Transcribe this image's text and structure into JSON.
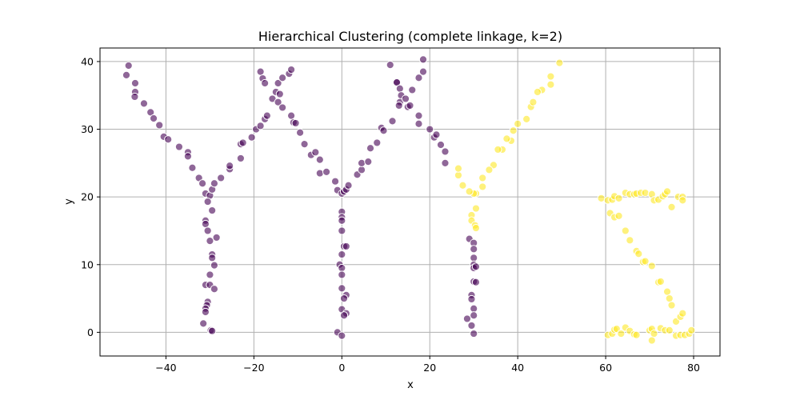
{
  "chart_data": {
    "type": "scatter",
    "title": "Hierarchical Clustering (complete linkage, k=2)",
    "xlabel": "x",
    "ylabel": "y",
    "xlim": [
      -55,
      86
    ],
    "ylim": [
      -3.5,
      42
    ],
    "xticks": [
      -40,
      -20,
      0,
      20,
      40,
      60,
      80
    ],
    "yticks": [
      0,
      10,
      20,
      30,
      40
    ],
    "grid": true,
    "point_alpha": 0.6,
    "colors": {
      "cluster_0": "#440154",
      "cluster_1": "#fde725"
    },
    "series": [
      {
        "cluster": 0,
        "points": [
          [
            -49,
            38
          ],
          [
            -48.5,
            39.4
          ],
          [
            -47,
            36.8
          ],
          [
            -47,
            35.5
          ],
          [
            -47.1,
            34.8
          ],
          [
            -45,
            33.8
          ],
          [
            -43.5,
            32.5
          ],
          [
            -42.8,
            31.6
          ],
          [
            -41.5,
            30.6
          ],
          [
            -40.5,
            28.9
          ],
          [
            -39.5,
            28.5
          ],
          [
            -37,
            27.4
          ],
          [
            -35,
            26.6
          ],
          [
            -35,
            26
          ],
          [
            -34,
            24.3
          ],
          [
            -32.5,
            22.8
          ],
          [
            -31.7,
            22
          ],
          [
            -31,
            20.5
          ],
          [
            -30,
            20.2
          ],
          [
            -30.5,
            19.3
          ],
          [
            -29.5,
            18
          ],
          [
            -29.5,
            21.1
          ],
          [
            -29,
            22
          ],
          [
            -27.5,
            22.8
          ],
          [
            -25.5,
            24.1
          ],
          [
            -25.5,
            24.6
          ],
          [
            -23,
            27.8
          ],
          [
            -22.5,
            28
          ],
          [
            -23,
            25.7
          ],
          [
            -20.5,
            28.8
          ],
          [
            -19.5,
            30
          ],
          [
            -18.5,
            30.5
          ],
          [
            -18.5,
            38.5
          ],
          [
            -18,
            37.5
          ],
          [
            -17.5,
            36.8
          ],
          [
            -17.5,
            31.5
          ],
          [
            -17,
            32
          ],
          [
            -15.8,
            34.5
          ],
          [
            -15,
            35.5
          ],
          [
            -14.5,
            36.8
          ],
          [
            -14.5,
            34
          ],
          [
            -14.1,
            35.2
          ],
          [
            -13.5,
            33.2
          ],
          [
            -13.5,
            37.6
          ],
          [
            -12,
            38.2
          ],
          [
            -11.5,
            38.8
          ],
          [
            -11.5,
            32
          ],
          [
            -11,
            31
          ],
          [
            -10.5,
            30.9
          ],
          [
            -9.5,
            29.5
          ],
          [
            -8.5,
            27.8
          ],
          [
            -7,
            26.2
          ],
          [
            -6,
            26.6
          ],
          [
            -5,
            25.5
          ],
          [
            -5,
            23.5
          ],
          [
            -3.5,
            23.7
          ],
          [
            -1.5,
            22.3
          ],
          [
            -1,
            21
          ],
          [
            0,
            20.5
          ],
          [
            0.5,
            20.8
          ],
          [
            1,
            21.1
          ],
          [
            1.5,
            21.7
          ],
          [
            3.5,
            23.3
          ],
          [
            4.5,
            24
          ],
          [
            4.5,
            25
          ],
          [
            6,
            25.2
          ],
          [
            6.5,
            27.2
          ],
          [
            8,
            28
          ],
          [
            9,
            30.2
          ],
          [
            9.5,
            29.8
          ],
          [
            11,
            39.5
          ],
          [
            11.5,
            31.2
          ],
          [
            12.5,
            37
          ],
          [
            12.5,
            36.9
          ],
          [
            13.2,
            36
          ],
          [
            13.5,
            35
          ],
          [
            13.2,
            34
          ],
          [
            13,
            33.5
          ],
          [
            14.5,
            34.5
          ],
          [
            15,
            33.3
          ],
          [
            15.5,
            33.5
          ],
          [
            16,
            35.8
          ],
          [
            17.5,
            37.6
          ],
          [
            18.5,
            38.5
          ],
          [
            18.5,
            40.3
          ],
          [
            17.5,
            32
          ],
          [
            17.5,
            30.8
          ],
          [
            20,
            30
          ],
          [
            21,
            28.8
          ],
          [
            21.5,
            29.2
          ],
          [
            22.5,
            27.7
          ],
          [
            23.5,
            26.7
          ],
          [
            23.5,
            25
          ],
          [
            -31,
            16.5
          ],
          [
            -31,
            16
          ],
          [
            -30.5,
            15
          ],
          [
            -30,
            13.5
          ],
          [
            -29.5,
            11.5
          ],
          [
            -29.5,
            11
          ],
          [
            -29,
            9.9
          ],
          [
            -30,
            8.5
          ],
          [
            -31,
            7
          ],
          [
            -30,
            7
          ],
          [
            -29,
            6.4
          ],
          [
            -30.5,
            4.5
          ],
          [
            -30.7,
            4
          ],
          [
            -31,
            3.5
          ],
          [
            -31,
            3
          ],
          [
            -31.5,
            1.3
          ],
          [
            -29.8,
            0.3
          ],
          [
            -29.5,
            0.2
          ],
          [
            -28.5,
            14
          ],
          [
            0,
            17.8
          ],
          [
            0,
            17
          ],
          [
            0,
            16.5
          ],
          [
            0,
            15
          ],
          [
            0.5,
            12.7
          ],
          [
            1,
            12.7
          ],
          [
            0,
            11.5
          ],
          [
            -0.5,
            10
          ],
          [
            0,
            9.5
          ],
          [
            0,
            8.5
          ],
          [
            0,
            6.5
          ],
          [
            1,
            5.5
          ],
          [
            0.5,
            5
          ],
          [
            0,
            3.4
          ],
          [
            1,
            2.8
          ],
          [
            0.5,
            2.5
          ],
          [
            -1,
            0
          ],
          [
            0,
            -0.5
          ],
          [
            29,
            13.8
          ],
          [
            30,
            13.2
          ],
          [
            30,
            12.3
          ],
          [
            30,
            11
          ],
          [
            30,
            10
          ],
          [
            30,
            9.5
          ],
          [
            30.5,
            9.7
          ],
          [
            30,
            7.5
          ],
          [
            30.5,
            7.4
          ],
          [
            29.5,
            5.5
          ],
          [
            29.5,
            4.9
          ],
          [
            30,
            3.5
          ],
          [
            30,
            2.5
          ],
          [
            28.5,
            2
          ],
          [
            29.5,
            1
          ],
          [
            30,
            -0.2
          ]
        ]
      },
      {
        "cluster": 1,
        "points": [
          [
            49.5,
            39.8
          ],
          [
            47.5,
            36.6
          ],
          [
            47.5,
            37.8
          ],
          [
            45.5,
            35.8
          ],
          [
            44.5,
            35.5
          ],
          [
            43,
            33.3
          ],
          [
            43.5,
            34
          ],
          [
            42,
            31.5
          ],
          [
            40,
            30.8
          ],
          [
            39,
            29.8
          ],
          [
            38.5,
            28.3
          ],
          [
            37.5,
            28.6
          ],
          [
            36.5,
            27
          ],
          [
            35.5,
            27
          ],
          [
            34.5,
            24.7
          ],
          [
            33.5,
            24
          ],
          [
            32,
            22.8
          ],
          [
            32,
            21.5
          ],
          [
            30.5,
            20.5
          ],
          [
            30,
            20.5
          ],
          [
            29,
            20.8
          ],
          [
            27.5,
            21.7
          ],
          [
            26.5,
            23.2
          ],
          [
            26.5,
            24.2
          ],
          [
            29.5,
            17.3
          ],
          [
            30.5,
            18.3
          ],
          [
            29.5,
            16.5
          ],
          [
            30.3,
            15.8
          ],
          [
            30.5,
            15.4
          ],
          [
            59,
            19.8
          ],
          [
            60.5,
            19.5
          ],
          [
            61.5,
            19.6
          ],
          [
            62,
            20.1
          ],
          [
            63,
            19.8
          ],
          [
            64.5,
            20.6
          ],
          [
            65.5,
            20.4
          ],
          [
            66.5,
            20.4
          ],
          [
            67,
            20.5
          ],
          [
            68,
            20.6
          ],
          [
            69,
            20.6
          ],
          [
            70.5,
            20.4
          ],
          [
            71,
            19.5
          ],
          [
            72,
            19.6
          ],
          [
            73,
            20.1
          ],
          [
            73.5,
            20.4
          ],
          [
            74,
            20.8
          ],
          [
            75,
            18.5
          ],
          [
            76.5,
            20
          ],
          [
            77.5,
            20
          ],
          [
            77.5,
            19.5
          ],
          [
            61,
            17.6
          ],
          [
            62,
            17
          ],
          [
            63,
            17.2
          ],
          [
            64.5,
            15
          ],
          [
            65.5,
            13.6
          ],
          [
            67,
            12
          ],
          [
            67.5,
            11.6
          ],
          [
            68.5,
            10.4
          ],
          [
            69,
            10.5
          ],
          [
            70.5,
            9.8
          ],
          [
            72,
            7.4
          ],
          [
            72.5,
            7.5
          ],
          [
            74,
            6
          ],
          [
            74.5,
            5
          ],
          [
            75,
            4
          ],
          [
            76,
            1.6
          ],
          [
            77,
            2.3
          ],
          [
            77.5,
            2.8
          ],
          [
            60.5,
            -0.4
          ],
          [
            61.5,
            -0.2
          ],
          [
            62,
            0.4
          ],
          [
            62.5,
            0.5
          ],
          [
            63.5,
            -0.2
          ],
          [
            64.5,
            0.7
          ],
          [
            65.5,
            0.2
          ],
          [
            66.5,
            -0.3
          ],
          [
            67,
            -0.4
          ],
          [
            70,
            0.3
          ],
          [
            70.5,
            0.5
          ],
          [
            71,
            -0.2
          ],
          [
            72.5,
            0.6
          ],
          [
            73.5,
            0.3
          ],
          [
            74.5,
            0.3
          ],
          [
            70.5,
            -1.2
          ],
          [
            76,
            -0.5
          ],
          [
            77,
            -0.4
          ],
          [
            78,
            -0.4
          ],
          [
            79,
            -0.2
          ],
          [
            79.5,
            0.3
          ]
        ]
      }
    ]
  }
}
